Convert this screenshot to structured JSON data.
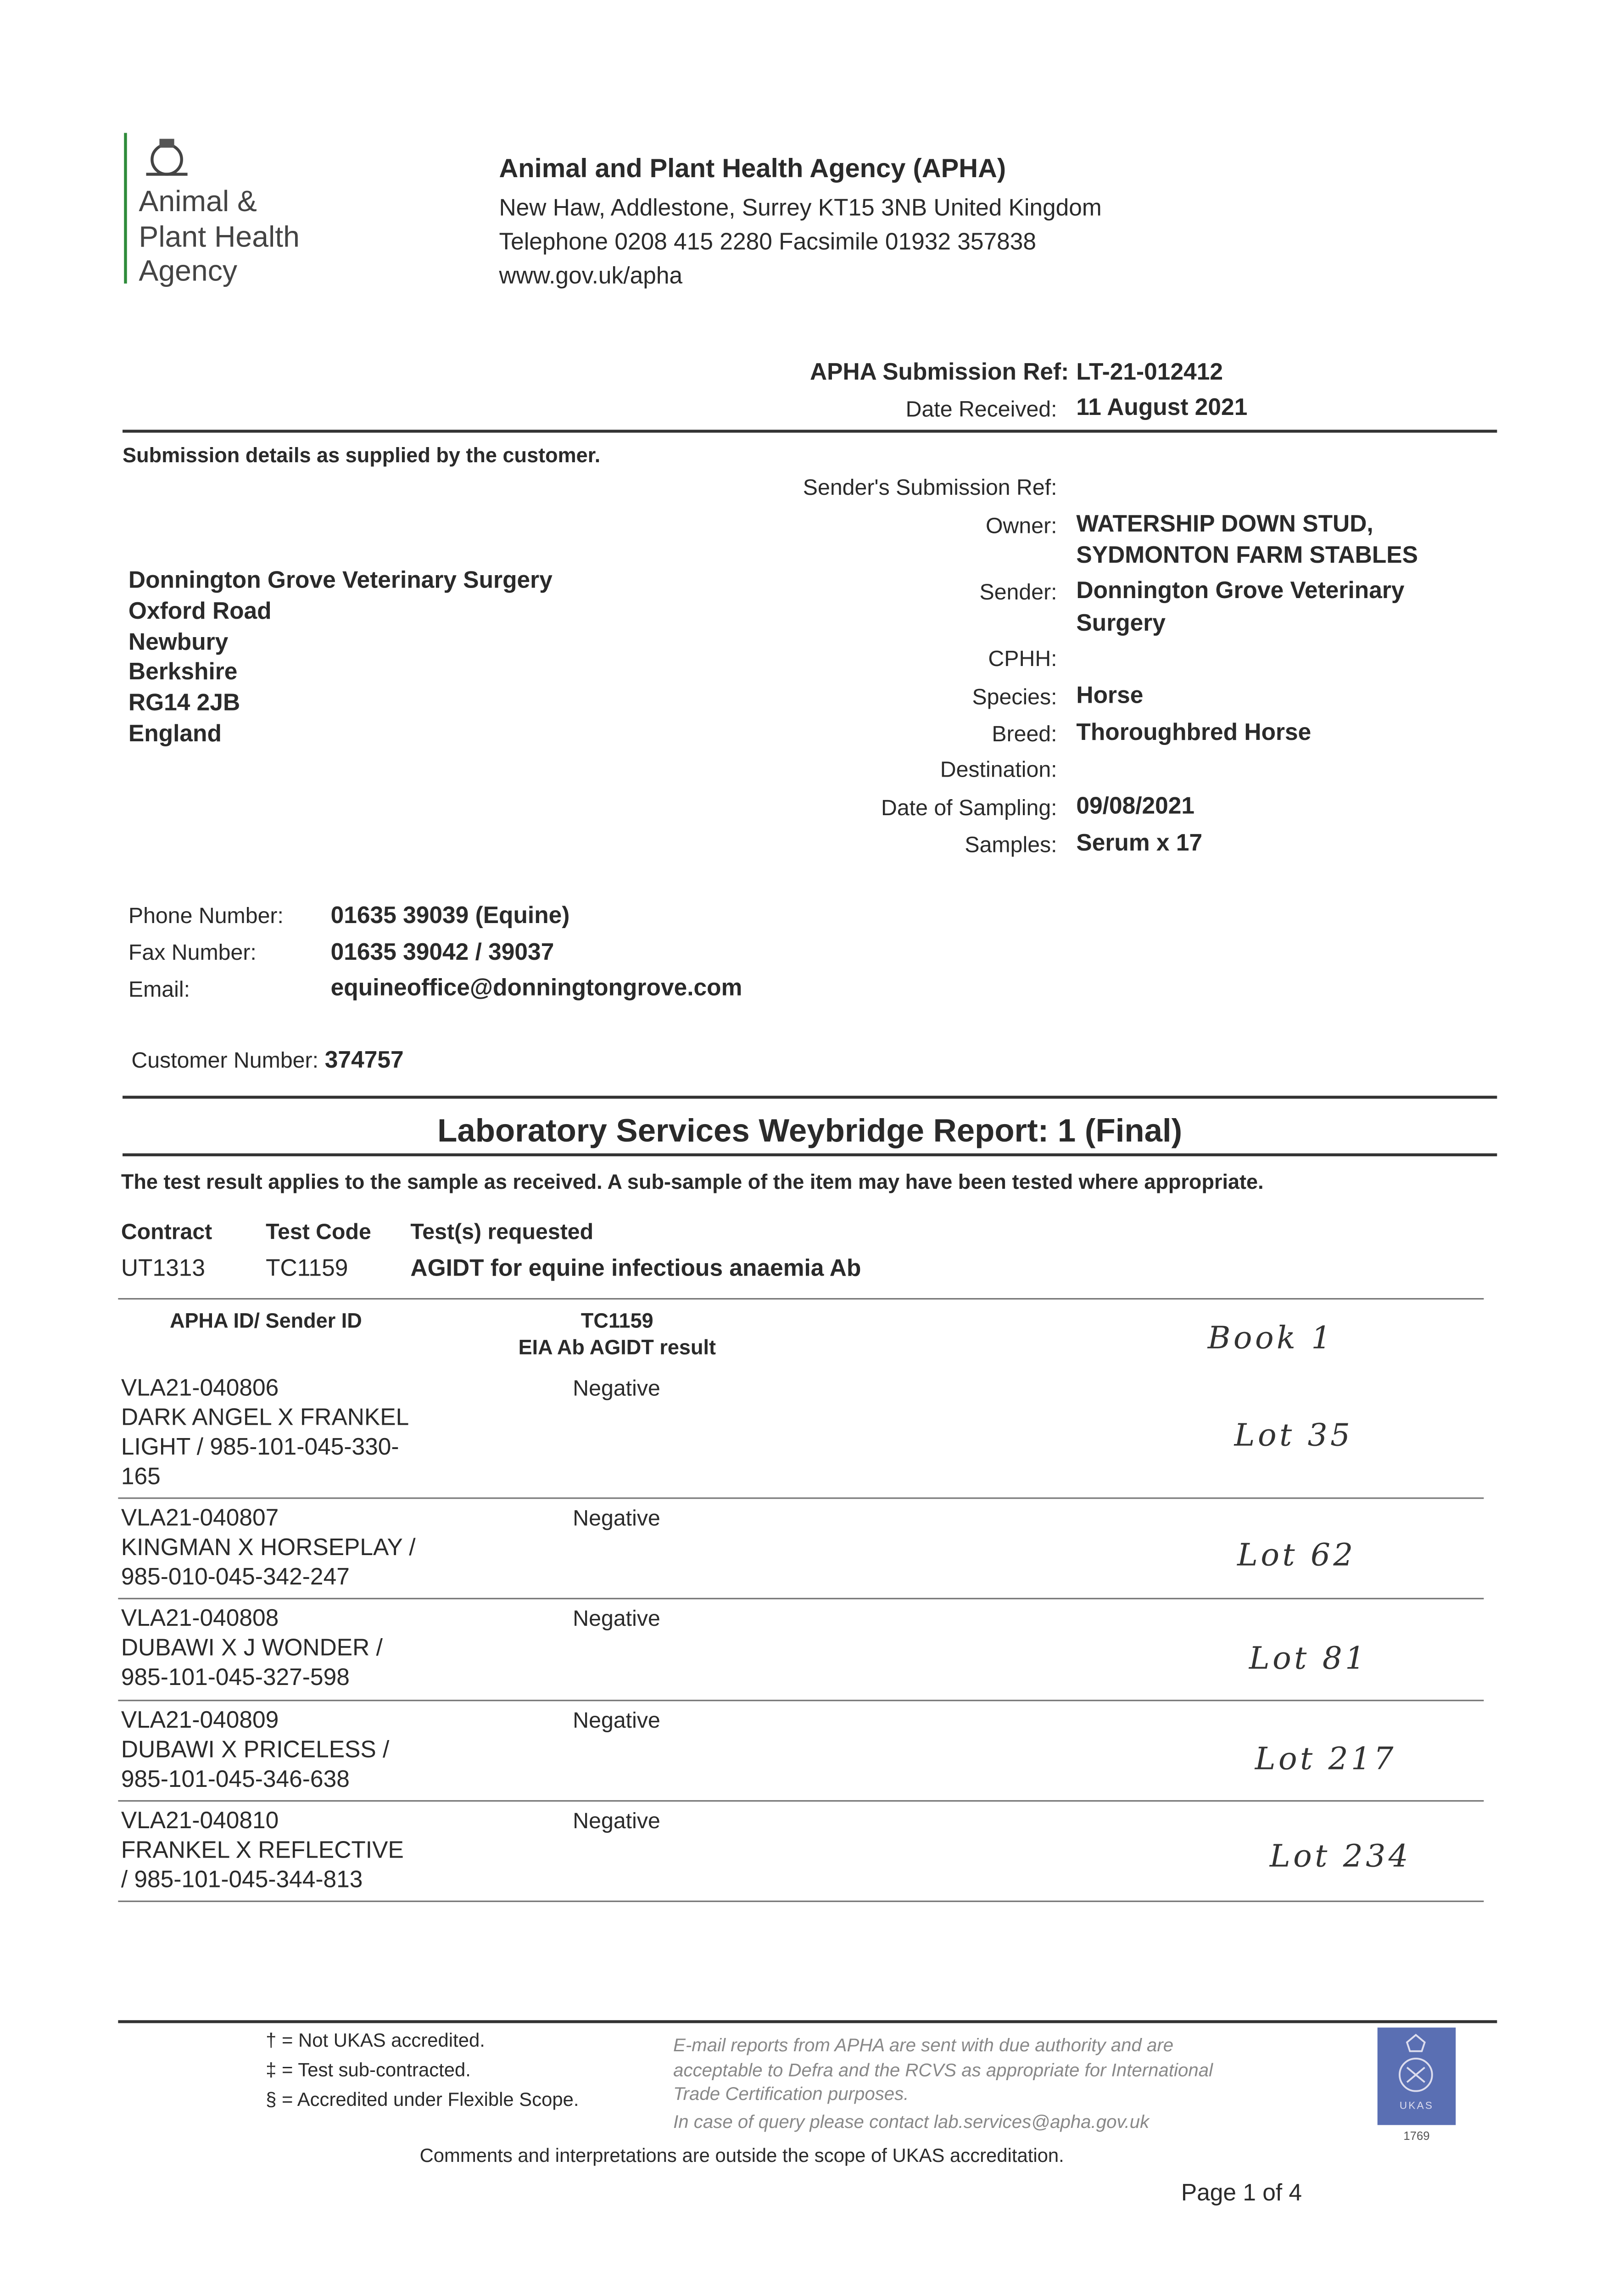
{
  "logo": {
    "lines": [
      "Animal &",
      "Plant Health",
      "Agency"
    ],
    "accent": "#2e8b3a"
  },
  "header": {
    "org": "Animal and Plant Health Agency (APHA)",
    "address": "New Haw, Addlestone, Surrey KT15 3NB United Kingdom",
    "phone": "Telephone 0208 415 2280 Facsimile 01932 357838",
    "web": "www.gov.uk/apha"
  },
  "submission": {
    "ref_label": "APHA Submission Ref:",
    "ref": "LT-21-012412",
    "date_label": "Date Received:",
    "date": "11 August 2021"
  },
  "details_heading": "Submission details as supplied by the customer.",
  "fields": [
    {
      "label": "Sender's Submission Ref:",
      "value": ""
    },
    {
      "label": "Owner:",
      "value": "WATERSHIP DOWN STUD,",
      "value2": "SYDMONTON FARM STABLES"
    },
    {
      "label": "Sender:",
      "value": "Donnington Grove Veterinary",
      "value2": "Surgery"
    },
    {
      "label": "CPHH:",
      "value": ""
    },
    {
      "label": "Species:",
      "value": "Horse"
    },
    {
      "label": "Breed:",
      "value": "Thoroughbred Horse"
    },
    {
      "label": "Destination:",
      "value": ""
    },
    {
      "label": "Date of Sampling:",
      "value": "09/08/2021"
    },
    {
      "label": "Samples:",
      "value": "Serum x 17"
    }
  ],
  "address": [
    "Donnington Grove Veterinary Surgery",
    "Oxford Road",
    "Newbury",
    "Berkshire",
    "RG14 2JB",
    "England"
  ],
  "contact": {
    "phone_label": "Phone Number:",
    "phone": "01635 39039 (Equine)",
    "fax_label": "Fax Number:",
    "fax": "01635 39042 / 39037",
    "email_label": "Email:",
    "email": "equineoffice@donningtongrove.com",
    "customer_label": "Customer Number:",
    "customer": "374757"
  },
  "report": {
    "title": "Laboratory Services Weybridge Report: 1 (Final)",
    "note": "The test result applies to the sample as received. A sub-sample of the item may have been tested where appropriate."
  },
  "tests": {
    "headers": [
      "Contract",
      "Test Code",
      "Test(s) requested"
    ],
    "row": [
      "UT1313",
      "TC1159",
      "AGIDT for equine infectious anaemia Ab"
    ]
  },
  "results": {
    "col1": "APHA ID/ Sender ID",
    "col2a": "TC1159",
    "col2b": "EIA Ab AGIDT result",
    "handwritten_header": "Book 1",
    "rows": [
      {
        "id": "VLA21-040806",
        "desc": "DARK ANGEL X FRANKEL LIGHT / 985-101-045-330-165",
        "result": "Negative",
        "note": "Lot 35"
      },
      {
        "id": "VLA21-040807",
        "desc": "KINGMAN X HORSEPLAY / 985-010-045-342-247",
        "result": "Negative",
        "note": "Lot 62"
      },
      {
        "id": "VLA21-040808",
        "desc": "DUBAWI X J WONDER / 985-101-045-327-598",
        "result": "Negative",
        "note": "Lot 81"
      },
      {
        "id": "VLA21-040809",
        "desc": "DUBAWI X PRICELESS / 985-101-045-346-638",
        "result": "Negative",
        "note": "Lot 217"
      },
      {
        "id": "VLA21-040810",
        "desc": "FRANKEL X REFLECTIVE / 985-101-045-344-813",
        "result": "Negative",
        "note": "Lot 234"
      }
    ]
  },
  "footer": {
    "legend": [
      "† = Not UKAS accredited.",
      "‡ = Test sub-contracted.",
      "§ = Accredited under Flexible Scope."
    ],
    "email_note": [
      "E-mail reports from APHA are sent with due authority and are",
      "acceptable to Defra and the RCVS as appropriate for International",
      "Trade Certification purposes."
    ],
    "query": "In case of query please contact lab.services@apha.gov.uk",
    "ukas": {
      "text": "UKAS",
      "number": "1769",
      "color": "#5a6fb3"
    },
    "comments": "Comments and interpretations are outside the scope of UKAS accreditation.",
    "page": "Page 1 of 4"
  }
}
